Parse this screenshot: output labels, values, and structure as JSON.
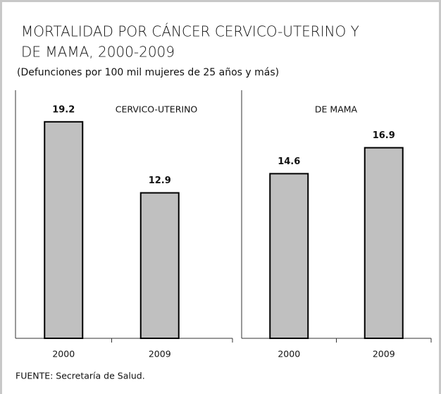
{
  "title": [
    "MORTALIDAD POR CÁNCER CERVICO-UTERINO Y",
    "DE MAMA, 2000-2009"
  ],
  "subtitle": "(Defunciones por 100 mil mujeres de 25 años y más)",
  "source": "FUENTE: Secretaría de Salud.",
  "chart_data": [
    {
      "type": "bar",
      "title": "CERVICO-UTERINO",
      "categories": [
        "2000",
        "2009"
      ],
      "values": [
        19.2,
        12.9
      ],
      "color": "#c0c0c0",
      "ylim": [
        0,
        22
      ]
    },
    {
      "type": "bar",
      "title": "DE MAMA",
      "categories": [
        "2000",
        "2009"
      ],
      "values": [
        14.6,
        16.9
      ],
      "color": "#c0c0c0",
      "ylim": [
        0,
        22
      ]
    }
  ]
}
